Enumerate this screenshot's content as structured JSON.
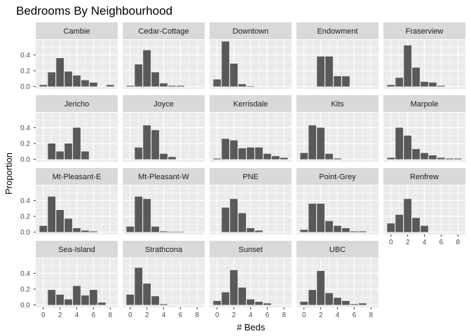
{
  "chart_data": {
    "type": "bar",
    "title": "Bedrooms By Neighbourhood",
    "xlabel": "# Beds",
    "ylabel": "Proportion",
    "facet_layout": "wrap",
    "ncol": 5,
    "x": [
      0,
      1,
      2,
      3,
      4,
      5,
      6,
      7,
      8
    ],
    "xticks": [
      0,
      2,
      4,
      6,
      8
    ],
    "xlim": [
      -0.9,
      8.9
    ],
    "yticks": [
      0.0,
      0.2,
      0.4
    ],
    "ytick_labels": [
      "0.0",
      "0.2",
      "0.4"
    ],
    "ylim": [
      -0.03,
      0.59
    ],
    "grid": true,
    "colors": {
      "bar": "#595959",
      "panel_bg": "#ebebeb",
      "grid_major": "#ffffff",
      "strip_bg": "#d9d9d9"
    },
    "facets": [
      {
        "name": "Cambie",
        "values": [
          0.02,
          0.18,
          0.36,
          0.19,
          0.14,
          0.08,
          0.05,
          0,
          0.02
        ]
      },
      {
        "name": "Cedar-Cottage",
        "values": [
          0.01,
          0.28,
          0.46,
          0.18,
          0.04,
          0.01,
          0.01,
          0,
          0
        ]
      },
      {
        "name": "Downtown",
        "values": [
          0.09,
          0.57,
          0.29,
          0.03,
          0.005,
          0,
          0,
          0,
          0
        ]
      },
      {
        "name": "Endowment",
        "values": [
          0,
          0,
          0.38,
          0.38,
          0.13,
          0.13,
          0,
          0,
          0
        ]
      },
      {
        "name": "Fraserview",
        "values": [
          0.02,
          0.11,
          0.52,
          0.24,
          0.06,
          0.05,
          0.01,
          0,
          0
        ]
      },
      {
        "name": "Jericho",
        "values": [
          0,
          0.2,
          0.1,
          0.2,
          0.4,
          0.1,
          0,
          0,
          0
        ]
      },
      {
        "name": "Joyce",
        "values": [
          0,
          0.15,
          0.43,
          0.37,
          0.07,
          0.03,
          0,
          0,
          0
        ]
      },
      {
        "name": "Kerrisdale",
        "values": [
          0.01,
          0.26,
          0.24,
          0.14,
          0.15,
          0.15,
          0.07,
          0.04,
          0.02
        ]
      },
      {
        "name": "Kits",
        "values": [
          0.08,
          0.43,
          0.4,
          0.07,
          0.01,
          0,
          0,
          0,
          0
        ]
      },
      {
        "name": "Marpole",
        "values": [
          0.02,
          0.4,
          0.3,
          0.13,
          0.08,
          0.05,
          0.02,
          0.01,
          0.01
        ]
      },
      {
        "name": "Mt-Pleasant-E",
        "values": [
          0.08,
          0.45,
          0.28,
          0.17,
          0.05,
          0.02,
          0.01,
          0,
          0
        ]
      },
      {
        "name": "Mt-Pleasant-W",
        "values": [
          0.07,
          0.45,
          0.42,
          0.07,
          0.01,
          0.005,
          0.005,
          0,
          0
        ]
      },
      {
        "name": "PNE",
        "values": [
          0,
          0.31,
          0.42,
          0.24,
          0.05,
          0.02,
          0,
          0,
          0
        ]
      },
      {
        "name": "Point-Grey",
        "values": [
          0.03,
          0.36,
          0.36,
          0.14,
          0.08,
          0.05,
          0.01,
          0.01,
          0
        ]
      },
      {
        "name": "Renfrew",
        "values": [
          0.11,
          0.22,
          0.42,
          0.18,
          0.08,
          0,
          0,
          0,
          0
        ]
      },
      {
        "name": "Sea-Island",
        "values": [
          0,
          0.19,
          0.13,
          0.07,
          0.24,
          0.12,
          0.19,
          0.03,
          0
        ]
      },
      {
        "name": "Strathcona",
        "values": [
          0.13,
          0.47,
          0.27,
          0.11,
          0.01,
          0,
          0,
          0,
          0
        ]
      },
      {
        "name": "Sunset",
        "values": [
          0.05,
          0.16,
          0.44,
          0.22,
          0.07,
          0.04,
          0.02,
          0,
          0
        ]
      },
      {
        "name": "UBC",
        "values": [
          0.04,
          0.19,
          0.43,
          0.15,
          0.09,
          0.05,
          0.01,
          0.02,
          0
        ]
      }
    ]
  }
}
